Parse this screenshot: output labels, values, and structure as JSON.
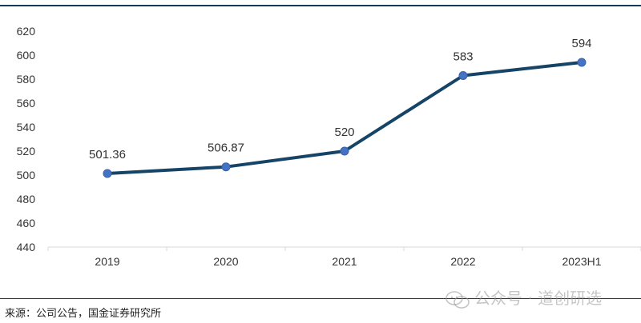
{
  "chart_data": {
    "type": "line",
    "categories": [
      "2019",
      "2020",
      "2021",
      "2022",
      "2023H1"
    ],
    "values": [
      501.36,
      506.87,
      520,
      583,
      594
    ],
    "data_labels": [
      "501.36",
      "506.87",
      "520",
      "583",
      "594"
    ],
    "yticks": [
      "440",
      "460",
      "480",
      "500",
      "520",
      "540",
      "560",
      "580",
      "600",
      "620"
    ],
    "ylim": [
      440,
      620
    ],
    "grid": false,
    "legend": "none",
    "colors": {
      "line": "#154467",
      "marker": "#4472c4",
      "text": "#333333"
    }
  },
  "footer": {
    "source": "来源：公司公告，国金证券研究所",
    "watermark": "公众号 · 道创研选"
  }
}
